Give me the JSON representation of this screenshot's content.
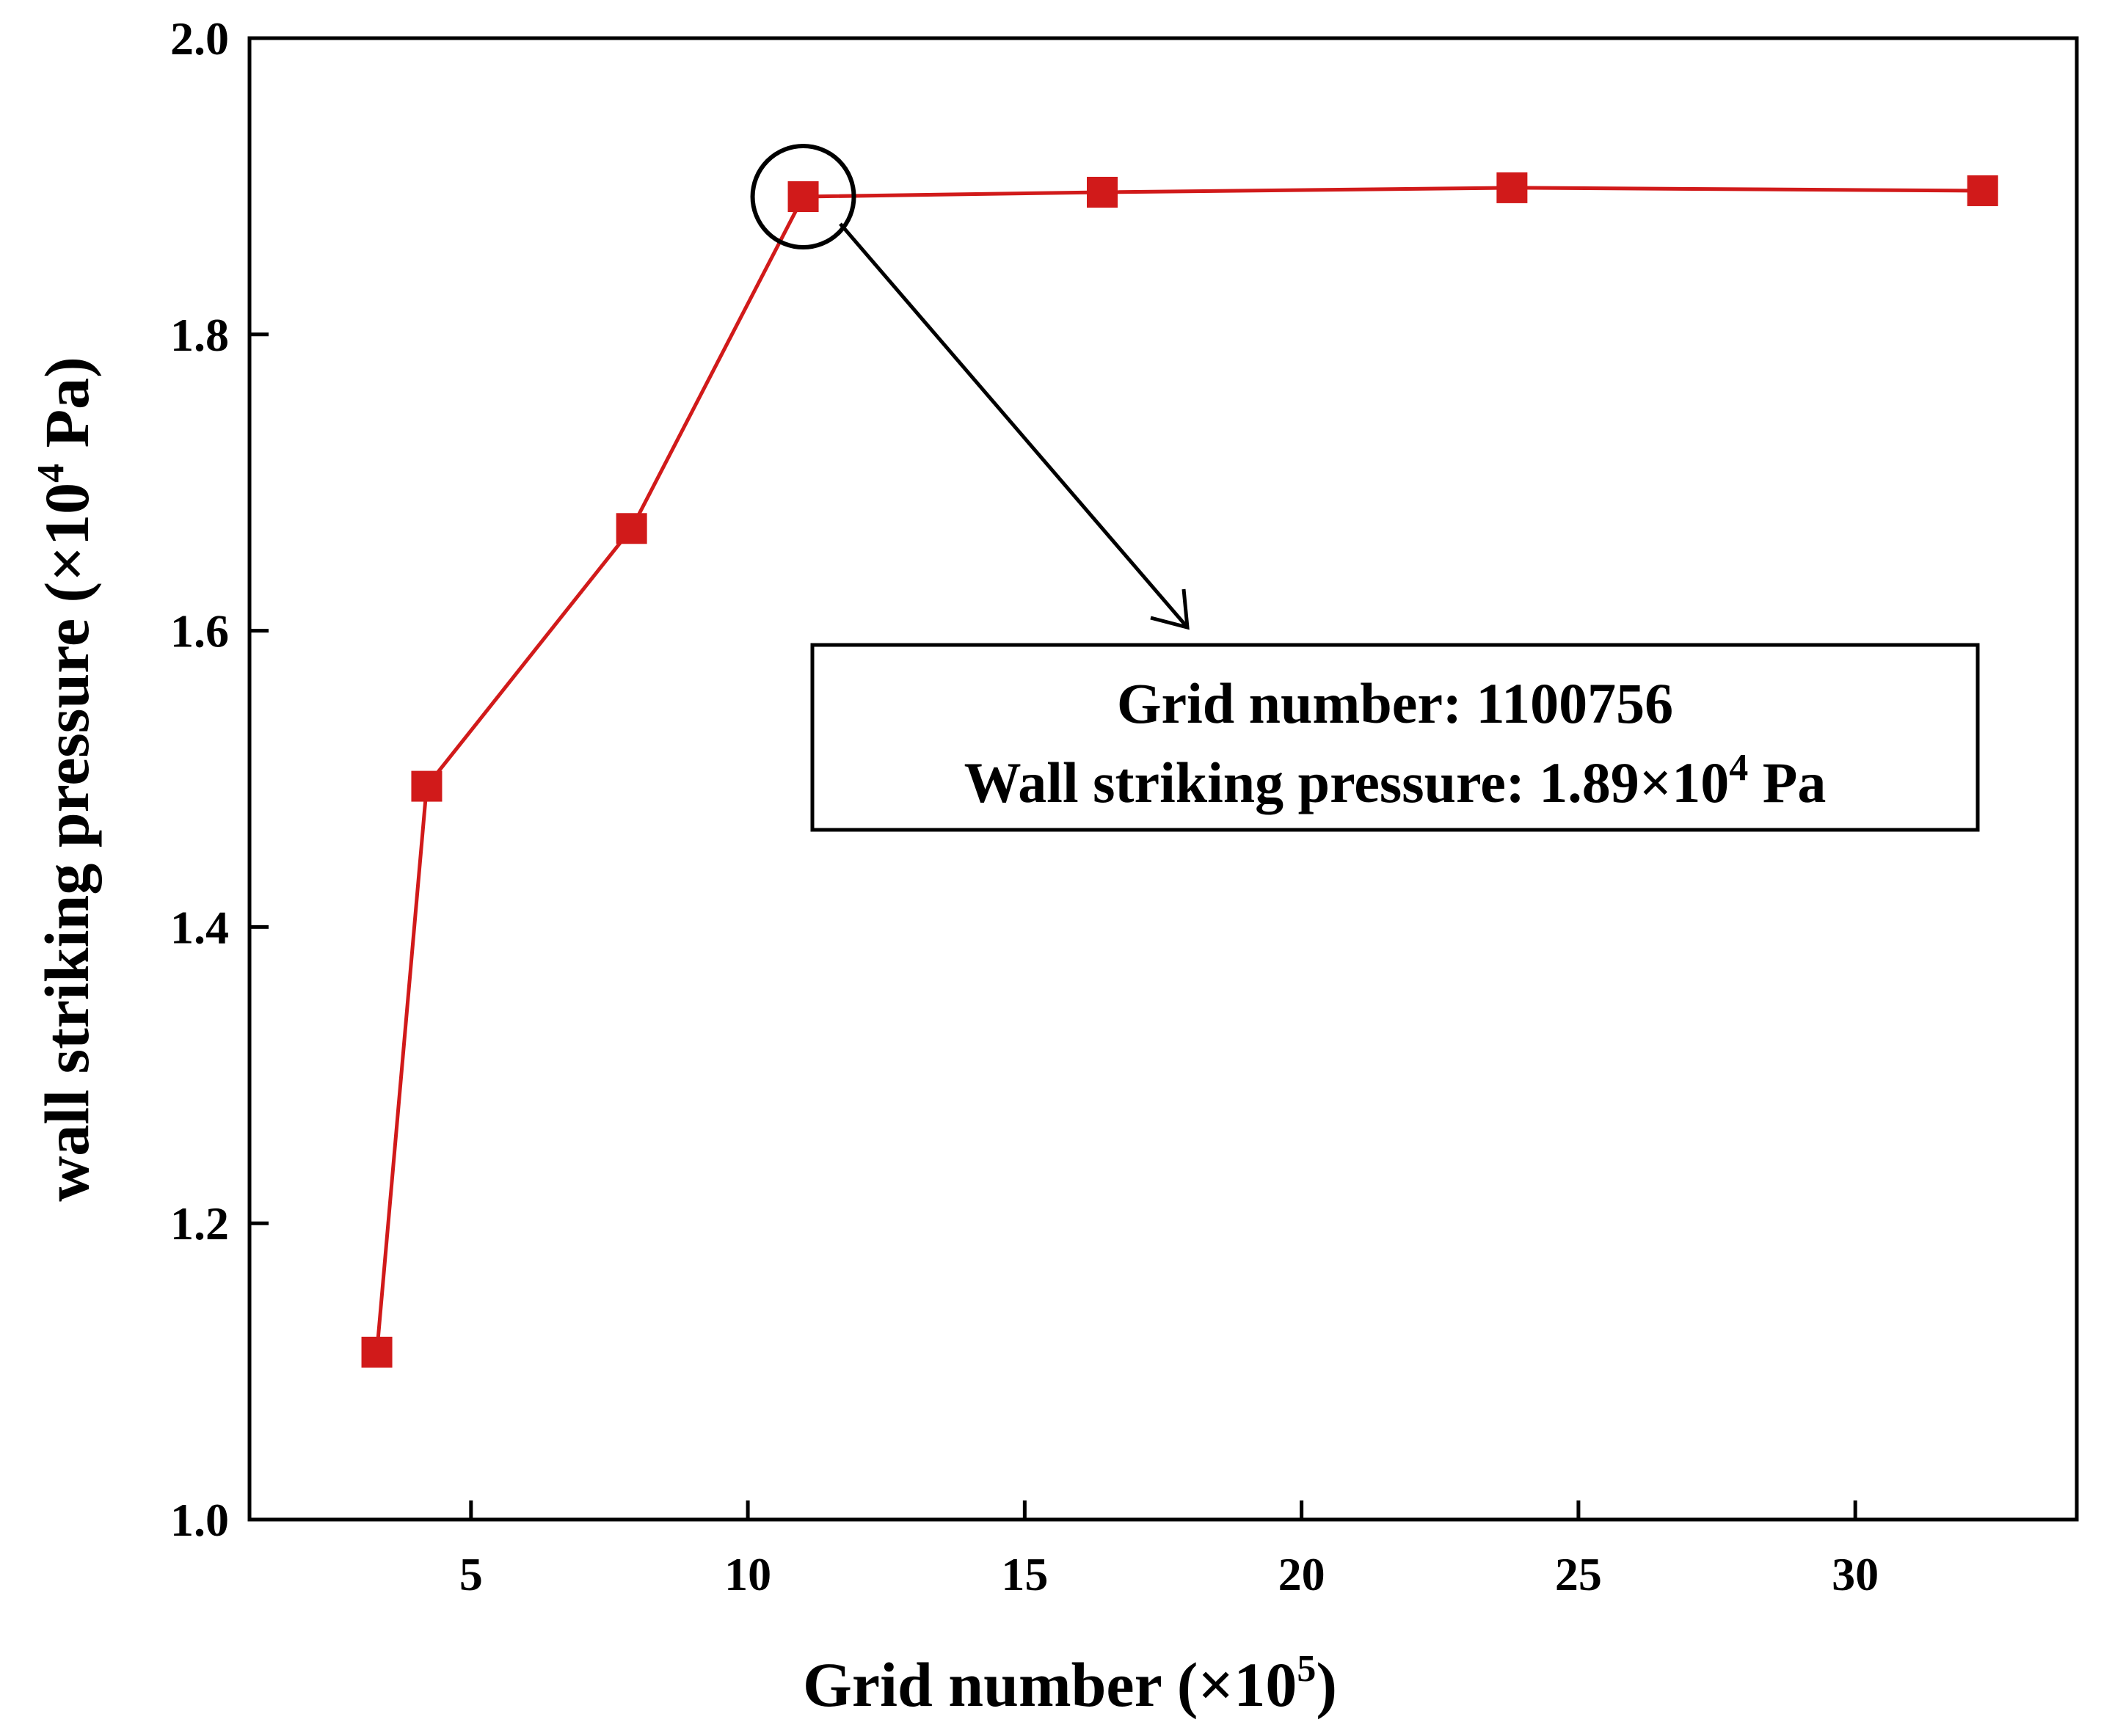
{
  "chart_data": {
    "type": "line",
    "title": "",
    "xlabel": {
      "prefix": "Grid number (×10",
      "sup": "5",
      "suffix": ")"
    },
    "ylabel": {
      "prefix": "wall striking pressure (×10",
      "sup": "4",
      "suffix": " Pa)"
    },
    "xlim": [
      1,
      34
    ],
    "ylim": [
      1.0,
      2.0
    ],
    "x_ticks": [
      5,
      10,
      15,
      20,
      25,
      30
    ],
    "x_tick_labels": [
      "5",
      "10",
      "15",
      "20",
      "25",
      "30"
    ],
    "y_ticks": [
      1.0,
      1.2,
      1.4,
      1.6,
      1.8,
      2.0
    ],
    "y_tick_labels": [
      "1.0",
      "1.2",
      "1.4",
      "1.6",
      "1.8",
      "2.0"
    ],
    "grid": false,
    "series": [
      {
        "name": "wall striking pressure",
        "color": "#d11a1a",
        "marker": "square",
        "x": [
          3.3,
          4.2,
          7.9,
          11.0,
          16.4,
          23.8,
          32.3
        ],
        "y": [
          1.113,
          1.495,
          1.669,
          1.893,
          1.896,
          1.899,
          1.897
        ]
      }
    ],
    "annotation": {
      "highlight_index": 3,
      "line1": "Grid number: 1100756",
      "line2_prefix": "Wall striking pressure:  1.89×10",
      "line2_sup": "4",
      "line2_suffix": " Pa"
    }
  }
}
